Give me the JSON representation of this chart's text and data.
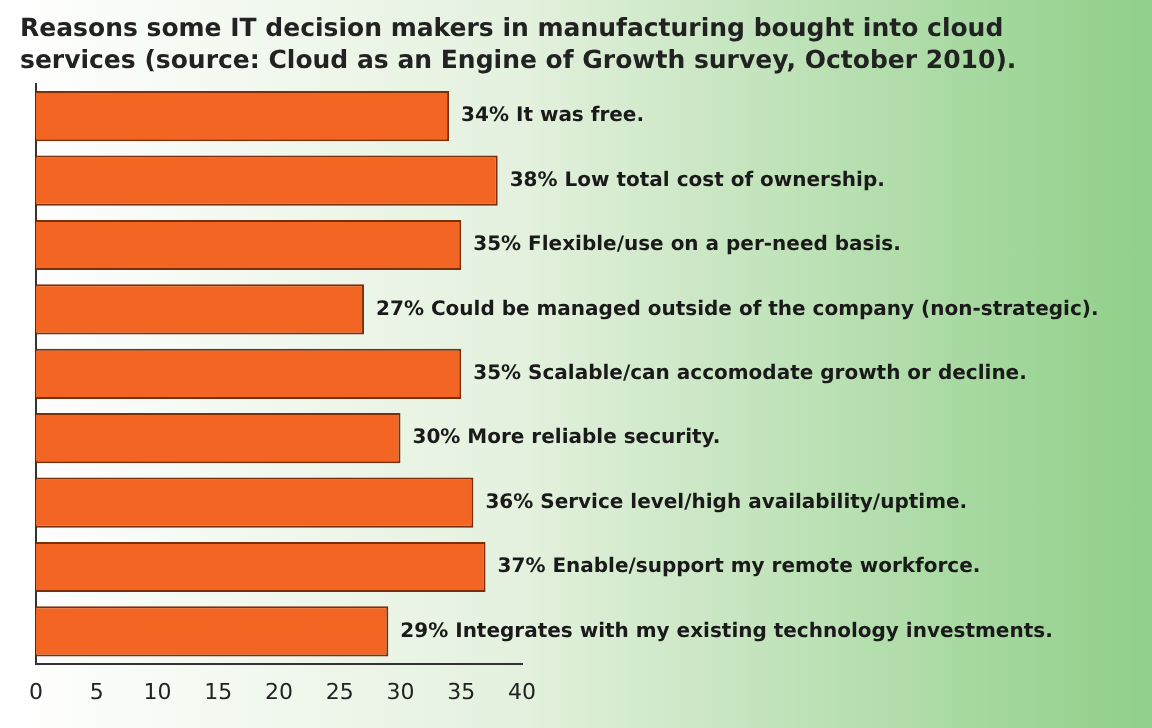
{
  "chart_data": {
    "type": "bar",
    "orientation": "horizontal",
    "title": "Reasons some IT decision makers in manufacturing bought into cloud services (source: Cloud as an Engine of Growth survey, October 2010).",
    "categories": [
      "It was free.",
      "Low total cost of ownership.",
      "Flexible/use on a per-need basis.",
      "Could be managed outside of the company (non-strategic).",
      "Scalable/can accomodate growth or decline.",
      "More reliable security.",
      "Service level/high availability/uptime.",
      "Enable/support my remote workforce.",
      "Integrates with my existing technology investments."
    ],
    "values": [
      34,
      38,
      35,
      27,
      35,
      30,
      36,
      37,
      29
    ],
    "value_labels": [
      "34%",
      "38%",
      "35%",
      "27%",
      "35%",
      "30%",
      "36%",
      "37%",
      "29%"
    ],
    "color": "#f26522",
    "xlim": [
      0,
      40
    ],
    "xticks": [
      0,
      5,
      10,
      15,
      20,
      25,
      30,
      35,
      40
    ],
    "tick_labels": "x",
    "grid": false,
    "legend": false
  }
}
